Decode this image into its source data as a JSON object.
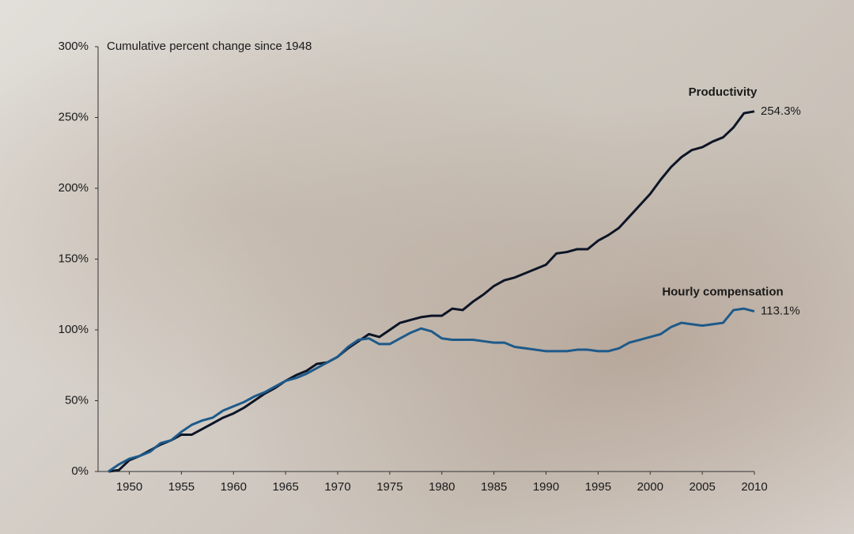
{
  "chart_data": {
    "type": "line",
    "y_label": "Cumulative percent change since 1948",
    "x": [
      1948,
      1949,
      1950,
      1951,
      1952,
      1953,
      1954,
      1955,
      1956,
      1957,
      1958,
      1959,
      1960,
      1961,
      1962,
      1963,
      1964,
      1965,
      1966,
      1967,
      1968,
      1969,
      1970,
      1971,
      1972,
      1973,
      1974,
      1975,
      1976,
      1977,
      1978,
      1979,
      1980,
      1981,
      1982,
      1983,
      1984,
      1985,
      1986,
      1987,
      1988,
      1989,
      1990,
      1991,
      1992,
      1993,
      1994,
      1995,
      1996,
      1997,
      1998,
      1999,
      2000,
      2001,
      2002,
      2003,
      2004,
      2005,
      2006,
      2007,
      2008,
      2009,
      2010
    ],
    "xlim": [
      1947,
      2010
    ],
    "xticks": [
      1950,
      1955,
      1960,
      1965,
      1970,
      1975,
      1980,
      1985,
      1990,
      1995,
      2000,
      2005,
      2010
    ],
    "ylim": [
      0,
      300
    ],
    "yticks": [
      {
        "value": 0,
        "label": "0%"
      },
      {
        "value": 50,
        "label": "50%"
      },
      {
        "value": 100,
        "label": "100%"
      },
      {
        "value": 150,
        "label": "150%"
      },
      {
        "value": 200,
        "label": "200%"
      },
      {
        "value": 250,
        "label": "250%"
      },
      {
        "value": 300,
        "label": "300%"
      }
    ],
    "series": [
      {
        "name": "Productivity",
        "color": "#0d1526",
        "values": [
          0,
          1,
          8,
          11,
          15,
          19,
          22,
          26,
          26,
          30,
          34,
          38,
          41,
          45,
          50,
          55,
          59,
          64,
          68,
          71,
          76,
          77,
          81,
          87,
          92,
          97,
          95,
          100,
          105,
          107,
          109,
          110,
          110,
          115,
          114,
          120,
          125,
          131,
          135,
          137,
          140,
          143,
          146,
          154,
          155,
          157,
          157,
          163,
          167,
          172,
          180,
          188,
          196,
          206,
          215,
          222,
          227,
          229,
          233,
          236,
          243,
          253,
          254.3
        ],
        "value_labels": [
          null,
          null,
          null,
          null,
          null,
          null,
          null,
          null,
          null,
          null,
          null,
          null,
          null,
          null,
          null,
          null,
          null,
          null,
          null,
          null,
          null,
          null,
          null,
          null,
          null,
          null,
          null,
          null,
          null,
          null,
          null,
          null,
          null,
          null,
          null,
          null,
          null,
          null,
          null,
          null,
          null,
          null,
          null,
          null,
          null,
          null,
          null,
          null,
          null,
          null,
          null,
          null,
          null,
          null,
          null,
          null,
          null,
          null,
          null,
          null,
          null,
          null,
          "254.3%"
        ]
      },
      {
        "name": "Hourly compensation",
        "color": "#1d5a8a",
        "values": [
          0,
          5,
          9,
          11,
          14,
          20,
          22,
          28,
          33,
          36,
          38,
          43,
          46,
          49,
          53,
          56,
          60,
          64,
          66,
          69,
          73,
          77,
          81,
          88,
          93,
          94,
          90,
          90,
          94,
          98,
          101,
          99,
          94,
          93,
          93,
          93,
          92,
          91,
          91,
          88,
          87,
          86,
          85,
          85,
          85,
          86,
          86,
          85,
          85,
          87,
          91,
          93,
          95,
          97,
          102,
          105,
          104,
          103,
          104,
          105,
          114,
          115,
          113.1
        ],
        "value_labels": [
          null,
          null,
          null,
          null,
          null,
          null,
          null,
          null,
          null,
          null,
          null,
          null,
          null,
          null,
          null,
          null,
          null,
          null,
          null,
          null,
          null,
          null,
          null,
          null,
          null,
          null,
          null,
          null,
          null,
          null,
          null,
          null,
          null,
          null,
          null,
          null,
          null,
          null,
          null,
          null,
          null,
          null,
          null,
          null,
          null,
          null,
          null,
          null,
          null,
          null,
          null,
          null,
          null,
          null,
          null,
          null,
          null,
          null,
          null,
          null,
          null,
          null,
          "113.1%"
        ]
      }
    ]
  }
}
